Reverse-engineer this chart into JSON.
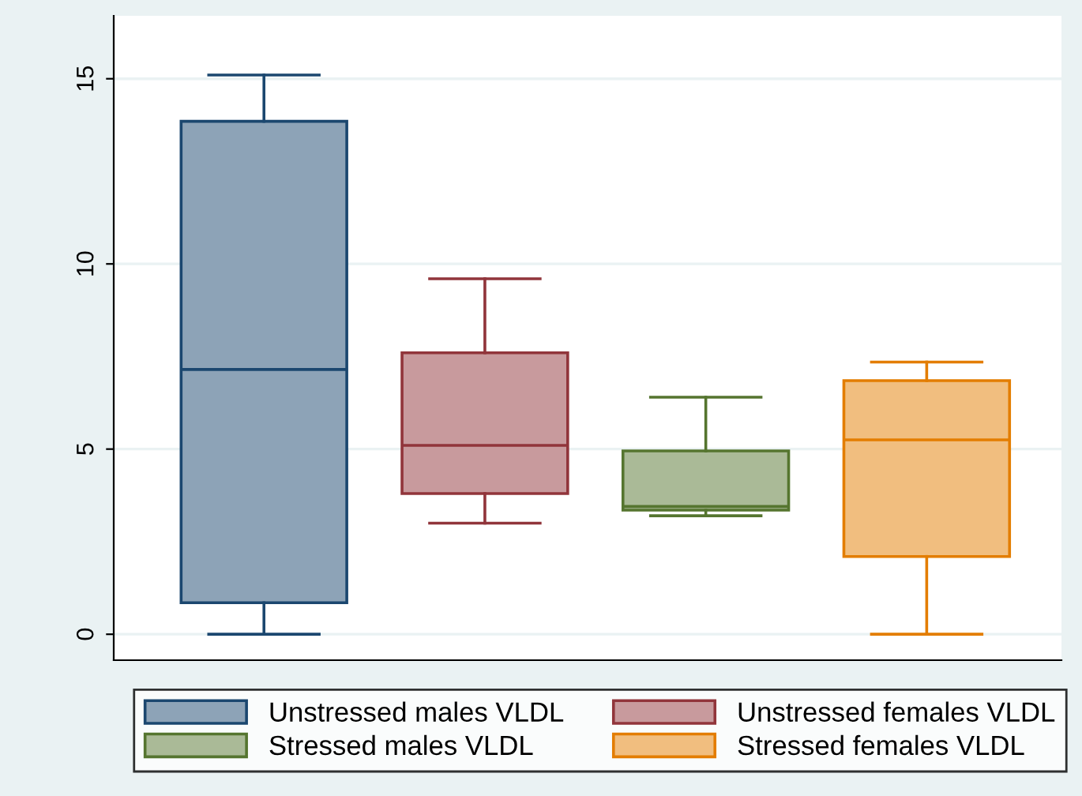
{
  "chart_data": {
    "type": "box",
    "categories": [
      null,
      null,
      null,
      null
    ],
    "ylim": [
      -0.7,
      16.7
    ],
    "yticks": [
      0,
      5,
      10,
      15
    ],
    "grid": "y",
    "legend": "bottom",
    "series": [
      {
        "name": "Unstressed males VLDL",
        "color": "#8da3b7",
        "boxes": [
          {
            "low": 0,
            "q1": 0.85,
            "median": 7.15,
            "q3": 13.85,
            "high": 15.1
          },
          null,
          null,
          null
        ]
      },
      {
        "name": "Unstressed females VLDL",
        "color": "#c89a9d",
        "boxes": [
          null,
          {
            "low": 3.0,
            "q1": 3.8,
            "median": 5.1,
            "q3": 7.6,
            "high": 9.6
          },
          null,
          null
        ]
      },
      {
        "name": "Stressed males VLDL",
        "color": "#aaba97",
        "boxes": [
          null,
          null,
          {
            "low": 3.2,
            "q1": 3.35,
            "median": 3.45,
            "q3": 4.95,
            "high": 6.4
          },
          null
        ]
      },
      {
        "name": "Stressed females VLDL",
        "color": "#f1be7f",
        "boxes": [
          null,
          null,
          null,
          {
            "low": 0,
            "q1": 2.1,
            "median": 5.25,
            "q3": 6.85,
            "high": 7.35
          }
        ]
      }
    ]
  }
}
